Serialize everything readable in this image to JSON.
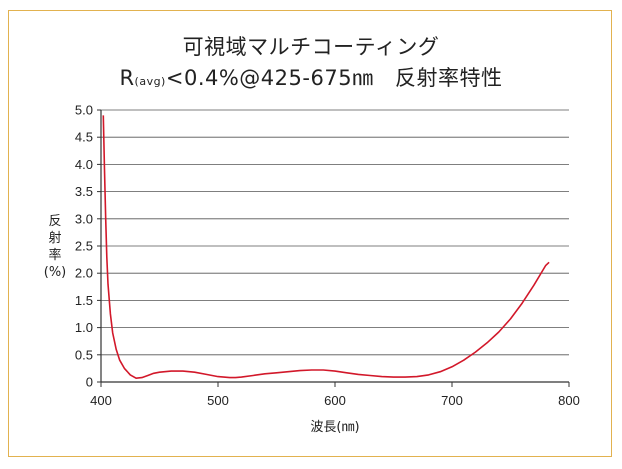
{
  "title_line1": "可視域マルチコーティング",
  "title_line2_prefix": "R",
  "title_line2_sub": "(avg)",
  "title_line2_rest": "<0.4%@425-675㎚　反射率特性",
  "chart_data": {
    "type": "line",
    "ylabel_lines": [
      "反",
      "射",
      "率",
      "(%)"
    ],
    "xlabel": "波長(㎚)",
    "xlim": [
      400,
      800
    ],
    "ylim": [
      0,
      5.0
    ],
    "x_ticks": [
      400,
      500,
      600,
      700,
      800
    ],
    "x_tick_labels": [
      "400",
      "500",
      "600",
      "700",
      "800"
    ],
    "y_ticks": [
      0,
      0.5,
      1.0,
      1.5,
      2.0,
      2.5,
      3.0,
      3.5,
      4.0,
      4.5,
      5.0
    ],
    "y_tick_labels": [
      "0",
      "0.5",
      "1.0",
      "1.5",
      "2.0",
      "2.5",
      "3.0",
      "3.5",
      "4.0",
      "4.5",
      "5.0"
    ],
    "grid": true,
    "line_color": "#d2182a",
    "series": [
      {
        "x": [
          402,
          403,
          404,
          405,
          406,
          408,
          410,
          413,
          416,
          420,
          425,
          430,
          435,
          440,
          445,
          450,
          460,
          470,
          480,
          490,
          500,
          510,
          515,
          520,
          530,
          540,
          550,
          560,
          570,
          580,
          590,
          600,
          610,
          620,
          630,
          640,
          650,
          660,
          670,
          680,
          690,
          700,
          710,
          720,
          730,
          740,
          750,
          760,
          770,
          780,
          783
        ],
        "y": [
          4.9,
          3.9,
          3.0,
          2.3,
          1.8,
          1.25,
          0.9,
          0.6,
          0.4,
          0.25,
          0.13,
          0.07,
          0.08,
          0.12,
          0.16,
          0.18,
          0.2,
          0.2,
          0.18,
          0.14,
          0.1,
          0.08,
          0.08,
          0.09,
          0.12,
          0.15,
          0.17,
          0.19,
          0.21,
          0.22,
          0.22,
          0.2,
          0.17,
          0.14,
          0.12,
          0.1,
          0.09,
          0.09,
          0.1,
          0.13,
          0.19,
          0.28,
          0.4,
          0.55,
          0.72,
          0.92,
          1.16,
          1.45,
          1.78,
          2.14,
          2.2
        ]
      }
    ]
  }
}
